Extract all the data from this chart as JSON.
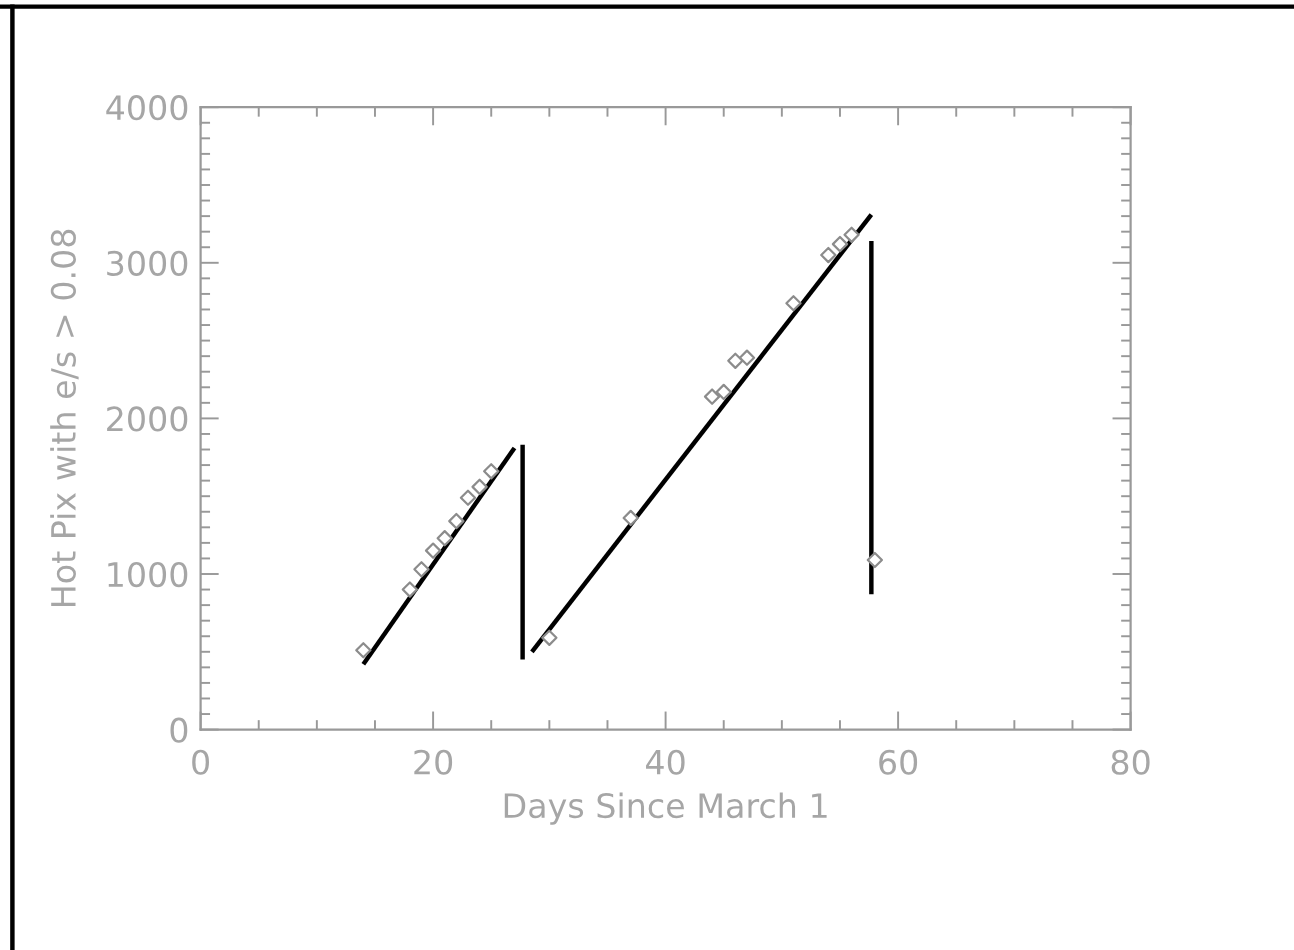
{
  "chart_data": {
    "type": "line",
    "xlabel": "Days Since March 1",
    "ylabel": "Hot Pix with e/s > 0.08",
    "xlim": [
      0,
      80
    ],
    "ylim": [
      0,
      4000
    ],
    "xticks": [
      0,
      {
        "value": 5,
        "label": null
      },
      {
        "value": 10,
        "label": null
      },
      {
        "value": 15,
        "label": null
      },
      20,
      {
        "value": 25,
        "label": null
      },
      {
        "value": 30,
        "label": null
      },
      {
        "value": 35,
        "label": null
      },
      40,
      {
        "value": 45,
        "label": null
      },
      {
        "value": 50,
        "label": null
      },
      {
        "value": 55,
        "label": null
      },
      60,
      {
        "value": 65,
        "label": null
      },
      {
        "value": 70,
        "label": null
      },
      {
        "value": 75,
        "label": null
      },
      80
    ],
    "yticks": [
      0,
      {
        "value": 100,
        "label": null
      },
      {
        "value": 200,
        "label": null
      },
      {
        "value": 300,
        "label": null
      },
      {
        "value": 400,
        "label": null
      },
      {
        "value": 500,
        "label": null
      },
      {
        "value": 600,
        "label": null
      },
      {
        "value": 700,
        "label": null
      },
      {
        "value": 800,
        "label": null
      },
      {
        "value": 900,
        "label": null
      },
      1000,
      {
        "value": 1100,
        "label": null
      },
      {
        "value": 1200,
        "label": null
      },
      {
        "value": 1300,
        "label": null
      },
      {
        "value": 1400,
        "label": null
      },
      {
        "value": 1500,
        "label": null
      },
      {
        "value": 1600,
        "label": null
      },
      {
        "value": 1700,
        "label": null
      },
      {
        "value": 1800,
        "label": null
      },
      {
        "value": 1900,
        "label": null
      },
      2000,
      {
        "value": 2100,
        "label": null
      },
      {
        "value": 2200,
        "label": null
      },
      {
        "value": 2300,
        "label": null
      },
      {
        "value": 2400,
        "label": null
      },
      {
        "value": 2500,
        "label": null
      },
      {
        "value": 2600,
        "label": null
      },
      {
        "value": 2700,
        "label": null
      },
      {
        "value": 2800,
        "label": null
      },
      {
        "value": 2900,
        "label": null
      },
      3000,
      {
        "value": 3100,
        "label": null
      },
      {
        "value": 3200,
        "label": null
      },
      {
        "value": 3300,
        "label": null
      },
      {
        "value": 3400,
        "label": null
      },
      {
        "value": 3500,
        "label": null
      },
      {
        "value": 3600,
        "label": null
      },
      {
        "value": 3700,
        "label": null
      },
      {
        "value": 3800,
        "label": null
      },
      {
        "value": 3900,
        "label": null
      },
      4000
    ],
    "series": [
      {
        "type": "scatter",
        "color": "#8c8c8c",
        "marker": "diamond",
        "x": [
          14,
          18,
          19,
          20,
          21,
          22,
          23,
          24,
          25,
          30,
          37,
          44,
          45,
          46,
          47,
          51,
          54,
          55,
          56,
          58
        ],
        "values": [
          510,
          900,
          1030,
          1150,
          1230,
          1340,
          1490,
          1560,
          1660,
          590,
          1360,
          2140,
          2170,
          2370,
          2390,
          2740,
          3050,
          3120,
          3180,
          1090
        ]
      },
      {
        "color": "#000000",
        "line_style": "solid",
        "x": [
          14,
          27
        ],
        "values": [
          420,
          1810
        ]
      },
      {
        "color": "#000000",
        "line_style": "solid",
        "x": [
          27.7,
          27.7
        ],
        "values": [
          1830,
          450
        ]
      },
      {
        "color": "#000000",
        "line_style": "solid",
        "x": [
          28.5,
          57.7
        ],
        "values": [
          500,
          3310
        ]
      },
      {
        "color": "#000000",
        "line_style": "solid",
        "x": [
          57.7,
          57.7
        ],
        "values": [
          3140,
          870
        ]
      }
    ]
  }
}
